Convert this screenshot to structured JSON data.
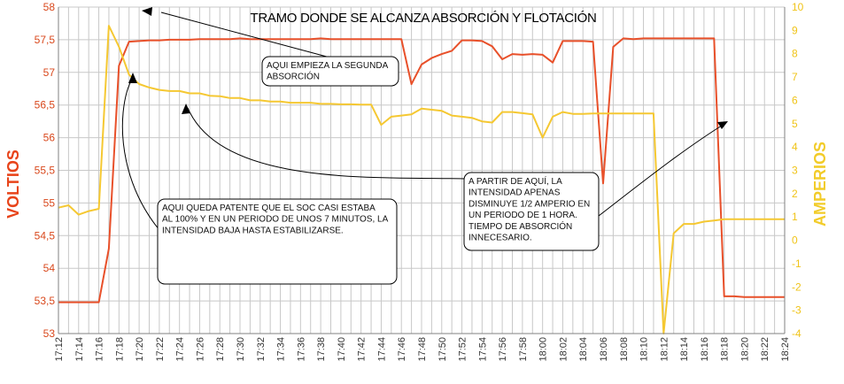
{
  "chart_data": {
    "type": "line",
    "title": "TRAMO DONDE SE ALCANZA ABSORCIÓN Y FLOTACIÓN",
    "ylabel_left": "VOLTIOS",
    "ylabel_right": "AMPERIOS",
    "grid": true,
    "ylim_left": [
      53,
      58
    ],
    "ylim_right": [
      -4,
      10
    ],
    "yticks_left": [
      "53",
      "53,5",
      "54",
      "54,5",
      "55",
      "55,5",
      "56",
      "56,5",
      "57",
      "57,5",
      "58"
    ],
    "yticks_right": [
      "-4",
      "-3",
      "-2",
      "-1",
      "0",
      "1",
      "2",
      "3",
      "4",
      "5",
      "6",
      "7",
      "8",
      "9",
      "10"
    ],
    "x_minutes": [
      0,
      1,
      2,
      3,
      4,
      5,
      6,
      7,
      8,
      9,
      10,
      11,
      12,
      13,
      14,
      15,
      16,
      17,
      18,
      19,
      20,
      21,
      22,
      23,
      24,
      25,
      26,
      27,
      28,
      29,
      30,
      31,
      32,
      33,
      34,
      35,
      36,
      37,
      38,
      39,
      40,
      41,
      42,
      43,
      44,
      45,
      46,
      47,
      48,
      49,
      50,
      51,
      52,
      53,
      54,
      55,
      56,
      57,
      58,
      59,
      60,
      61,
      62,
      63,
      64,
      65,
      66,
      67,
      68,
      69,
      70,
      71,
      72
    ],
    "xticks": [
      "17:12",
      "17:14",
      "17:16",
      "17:18",
      "17:20",
      "17:22",
      "17:24",
      "17:26",
      "17:28",
      "17:30",
      "17:32",
      "17:34",
      "17:36",
      "17:38",
      "17:40",
      "17:42",
      "17:44",
      "17:46",
      "17:48",
      "17:50",
      "17:52",
      "17:54",
      "17:56",
      "17:58",
      "18:00",
      "18:02",
      "18:04",
      "18:06",
      "18:08",
      "18:10",
      "18:12",
      "18:14",
      "18:16",
      "18:18",
      "18:20",
      "18:22",
      "18:24"
    ],
    "series": [
      {
        "axis": "left",
        "color": "#e8502a",
        "x": [
          0,
          1,
          2,
          3,
          4,
          5,
          6,
          7,
          8,
          9,
          10,
          11,
          12,
          13,
          14,
          15,
          16,
          17,
          18,
          19,
          20,
          21,
          22,
          23,
          24,
          25,
          26,
          27,
          28,
          29,
          30,
          31,
          32,
          33,
          34,
          35,
          36,
          37,
          38,
          39,
          40,
          41,
          42,
          43,
          44,
          45,
          46,
          47,
          48,
          49,
          50,
          51,
          52,
          53,
          54,
          55,
          56,
          57,
          58,
          59,
          60,
          61,
          62,
          63,
          64,
          65,
          66,
          67,
          68,
          69,
          70,
          71,
          72
        ],
        "values": [
          53.48,
          53.48,
          53.48,
          53.48,
          53.48,
          54.3,
          57.1,
          57.47,
          57.48,
          57.49,
          57.49,
          57.5,
          57.5,
          57.5,
          57.51,
          57.51,
          57.51,
          57.51,
          57.52,
          57.51,
          57.51,
          57.51,
          57.51,
          57.51,
          57.51,
          57.51,
          57.52,
          57.51,
          57.51,
          57.51,
          57.51,
          57.51,
          57.51,
          57.51,
          57.51,
          56.82,
          57.12,
          57.22,
          57.28,
          57.33,
          57.49,
          57.49,
          57.48,
          57.4,
          57.2,
          57.28,
          57.27,
          57.28,
          57.27,
          57.15,
          57.48,
          57.48,
          57.48,
          57.47,
          55.3,
          57.39,
          57.52,
          57.51,
          57.52,
          57.52,
          57.52,
          57.52,
          57.52,
          57.52,
          57.52,
          57.52,
          53.57,
          53.57,
          53.56,
          53.56,
          53.56,
          53.56,
          53.56
        ]
      },
      {
        "axis": "right",
        "color": "#f5c832",
        "x": [
          0,
          1,
          2,
          3,
          4,
          5,
          6,
          7,
          8,
          9,
          10,
          11,
          12,
          13,
          14,
          15,
          16,
          17,
          18,
          19,
          20,
          21,
          22,
          23,
          24,
          25,
          26,
          27,
          28,
          29,
          30,
          31,
          32,
          33,
          34,
          35,
          36,
          37,
          38,
          39,
          40,
          41,
          42,
          43,
          44,
          45,
          46,
          47,
          48,
          49,
          50,
          51,
          52,
          53,
          54,
          55,
          56,
          57,
          58,
          59,
          60,
          61,
          62,
          63,
          64,
          65,
          66,
          67,
          68,
          69,
          70,
          71,
          72
        ],
        "values": [
          1.4,
          1.5,
          1.1,
          1.25,
          1.35,
          9.2,
          8.3,
          7.1,
          6.7,
          6.55,
          6.45,
          6.4,
          6.4,
          6.3,
          6.3,
          6.2,
          6.18,
          6.1,
          6.1,
          6.0,
          6.0,
          5.95,
          5.95,
          5.9,
          5.9,
          5.9,
          5.85,
          5.85,
          5.83,
          5.83,
          5.82,
          5.82,
          4.95,
          5.3,
          5.35,
          5.4,
          5.65,
          5.6,
          5.55,
          5.35,
          5.3,
          5.25,
          5.1,
          5.05,
          5.5,
          5.5,
          5.45,
          5.4,
          4.4,
          5.3,
          5.5,
          5.42,
          5.42,
          5.44,
          5.44,
          5.44,
          5.44,
          5.44,
          5.44,
          5.44,
          -4.0,
          0.3,
          0.7,
          0.7,
          0.8,
          0.85,
          0.9,
          0.9,
          0.9,
          0.9,
          0.9,
          0.9,
          0.9
        ]
      }
    ],
    "annotations": [
      {
        "lines": [
          "AQUI EMPIEZA LA SEGUNDA",
          "ABSORCIÓN"
        ]
      },
      {
        "lines": [
          "AQUI QUEDA PATENTE QUE EL SOC CASI ESTABA",
          "AL 100% Y EN UN PERIODO DE UNOS 7 MINUTOS, LA",
          "INTENSIDAD BAJA HASTA ESTABILIZARSE."
        ]
      },
      {
        "lines": [
          "A PARTIR DE AQUÍ, LA",
          "INTENSIDAD APENAS",
          "DISMINUYE 1/2 AMPERIO EN",
          "UN PERIODO DE 1 HORA.",
          "TIEMPO DE ABSORCIÓN",
          "INNECESARIO."
        ]
      }
    ]
  }
}
